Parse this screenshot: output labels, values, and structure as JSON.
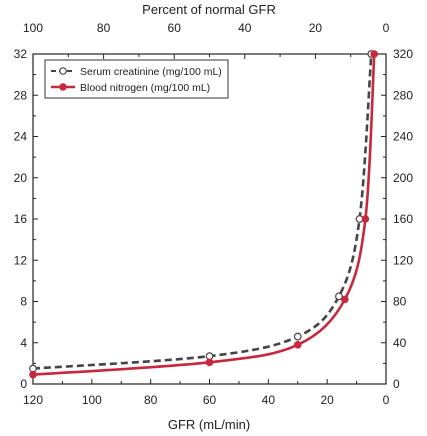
{
  "chart_data": {
    "type": "line",
    "title": "",
    "xlabel": "GFR (mL/min)",
    "top_xlabel": "Percent of normal GFR",
    "ylabel": "",
    "x_reversed": true,
    "xlim": [
      120,
      0
    ],
    "top_xlim": [
      100,
      0
    ],
    "ylim_left": [
      0,
      32
    ],
    "ylim_right": [
      0,
      320
    ],
    "x_ticks": [
      "120",
      "100",
      "80",
      "60",
      "40",
      "20",
      "0"
    ],
    "top_x_ticks": [
      "100",
      "80",
      "60",
      "40",
      "20",
      "0"
    ],
    "y_ticks_left": [
      "0",
      "4",
      "8",
      "12",
      "16",
      "20",
      "24",
      "28",
      "32"
    ],
    "y_ticks_right": [
      "0",
      "40",
      "80",
      "120",
      "160",
      "200",
      "240",
      "280",
      "320"
    ],
    "grid": false,
    "legend_position": "top-left",
    "series": [
      {
        "name": "Serum creatinine (mg/100 mL)",
        "axis": "left",
        "style": "dashed",
        "marker": "open-circle",
        "color": "#444444",
        "points": [
          {
            "x": 120,
            "y": 1.5
          },
          {
            "x": 60,
            "y": 2.7
          },
          {
            "x": 30,
            "y": 4.6
          },
          {
            "x": 16,
            "y": 8.5
          },
          {
            "x": 9,
            "y": 16
          },
          {
            "x": 5,
            "y": 32
          }
        ]
      },
      {
        "name": "Blood nitrogen (mg/100 mL)",
        "axis": "right",
        "style": "solid",
        "marker": "filled-circle",
        "color": "#c8283c",
        "points": [
          {
            "x": 120,
            "y": 9
          },
          {
            "x": 60,
            "y": 21
          },
          {
            "x": 30,
            "y": 38
          },
          {
            "x": 14,
            "y": 82
          },
          {
            "x": 7,
            "y": 160
          },
          {
            "x": 4,
            "y": 320
          }
        ]
      }
    ]
  }
}
